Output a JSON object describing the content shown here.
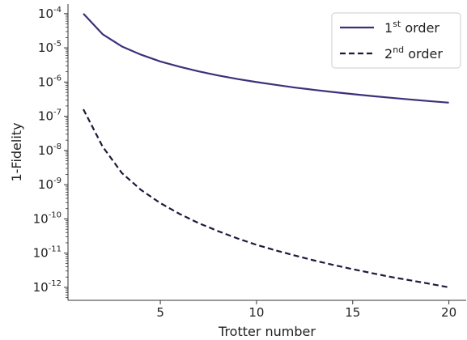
{
  "chart_data": {
    "type": "line",
    "xlabel": "Trotter number",
    "ylabel": "1-Fidelity",
    "xlim": [
      0.2,
      20.9
    ],
    "ylim_log10": [
      -12.38,
      -3.72
    ],
    "y_scale": "log",
    "x_ticks": [
      5,
      10,
      15,
      20
    ],
    "y_ticks": [
      {
        "exp": -4,
        "base": "10",
        "power": "-4"
      },
      {
        "exp": -5,
        "base": "10",
        "power": "-5"
      },
      {
        "exp": -6,
        "base": "10",
        "power": "-6"
      },
      {
        "exp": -7,
        "base": "10",
        "power": "-7"
      },
      {
        "exp": -8,
        "base": "10",
        "power": "-8"
      },
      {
        "exp": -9,
        "base": "10",
        "power": "-9"
      },
      {
        "exp": -10,
        "base": "10",
        "power": "-10"
      },
      {
        "exp": -11,
        "base": "10",
        "power": "-11"
      },
      {
        "exp": -12,
        "base": "10",
        "power": "-12"
      }
    ],
    "grid": false,
    "legend_position": "top-right",
    "x": [
      1,
      2,
      3,
      4,
      5,
      6,
      7,
      8,
      9,
      10,
      11,
      12,
      13,
      14,
      15,
      16,
      17,
      18,
      19,
      20
    ],
    "series": [
      {
        "name_base": "1",
        "name_sup": "st",
        "name_rest": " order",
        "color": "#3f2f7a",
        "dash": "solid",
        "values": [
          0.0001,
          2.5e-05,
          1.1e-05,
          6.3e-06,
          4e-06,
          2.8e-06,
          2.05e-06,
          1.56e-06,
          1.23e-06,
          1e-06,
          8.3e-07,
          6.9e-07,
          5.9e-07,
          5.1e-07,
          4.45e-07,
          3.9e-07,
          3.46e-07,
          3.09e-07,
          2.77e-07,
          2.5e-07
        ]
      },
      {
        "name_base": "2",
        "name_sup": "nd",
        "name_rest": " order",
        "color": "#1c1a3a",
        "dash": "dashed",
        "values": [
          1.6e-07,
          1.3e-08,
          2.2e-09,
          7e-10,
          2.9e-10,
          1.4e-10,
          7.5e-11,
          4.4e-11,
          2.7e-11,
          1.75e-11,
          1.2e-11,
          8.5e-12,
          6.1e-12,
          4.5e-12,
          3.4e-12,
          2.6e-12,
          2e-12,
          1.6e-12,
          1.27e-12,
          1e-12
        ]
      }
    ]
  }
}
